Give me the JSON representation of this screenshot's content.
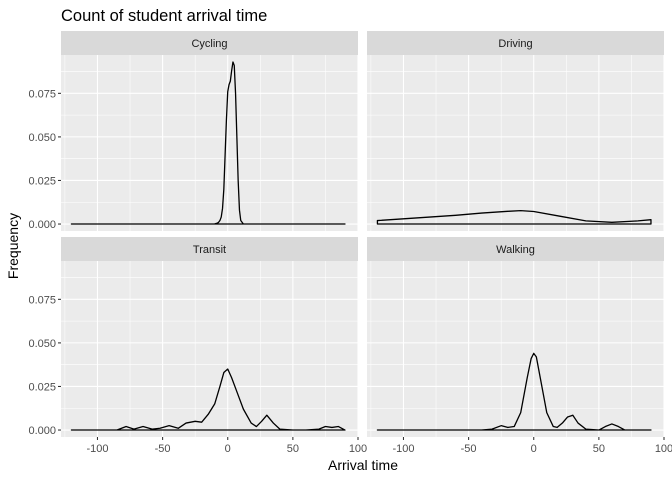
{
  "chart_data": {
    "type": "area",
    "title": "Count of student arrival time",
    "xlabel": "Arrival time",
    "ylabel": "Frequency",
    "xlim": [
      -128,
      100
    ],
    "ylim": [
      -0.004,
      0.097
    ],
    "x_ticks": [
      -100,
      -50,
      0,
      50,
      100
    ],
    "y_ticks": [
      0,
      0.025,
      0.05,
      0.075
    ],
    "x_tick_labels": [
      "-100",
      "-50",
      "0",
      "50",
      "100"
    ],
    "y_tick_labels": [
      "0.000",
      "0.025",
      "0.050",
      "0.075"
    ],
    "grid": true,
    "facets": [
      {
        "name": "Cycling",
        "x": [
          -120,
          -12,
          -10,
          -8,
          -7,
          -6,
          -5,
          -4,
          -3,
          -2,
          -1,
          0,
          1,
          2,
          3,
          4,
          5,
          6,
          7,
          8,
          9,
          10,
          12,
          90
        ],
        "y": [
          0,
          0,
          0.0001,
          0.0005,
          0.001,
          0.002,
          0.004,
          0.009,
          0.02,
          0.04,
          0.06,
          0.076,
          0.08,
          0.082,
          0.088,
          0.093,
          0.091,
          0.075,
          0.05,
          0.025,
          0.008,
          0.002,
          0,
          0
        ]
      },
      {
        "name": "Driving",
        "x": [
          -120,
          -100,
          -80,
          -60,
          -40,
          -20,
          -10,
          0,
          20,
          40,
          60,
          80,
          90
        ],
        "y": [
          0.002,
          0.003,
          0.004,
          0.005,
          0.0063,
          0.0073,
          0.0077,
          0.0072,
          0.0045,
          0.0018,
          0.001,
          0.0018,
          0.0025
        ]
      },
      {
        "name": "Transit",
        "x": [
          -120,
          -85,
          -78,
          -72,
          -65,
          -58,
          -52,
          -45,
          -38,
          -32,
          -25,
          -20,
          -15,
          -10,
          -6,
          -3,
          0,
          3,
          7,
          12,
          18,
          22,
          26,
          30,
          35,
          40,
          50,
          60,
          70,
          75,
          80,
          85,
          90
        ],
        "y": [
          0,
          0,
          0.002,
          0.0005,
          0.002,
          0.0005,
          0.001,
          0.0025,
          0.001,
          0.004,
          0.005,
          0.0045,
          0.009,
          0.015,
          0.025,
          0.033,
          0.035,
          0.03,
          0.022,
          0.012,
          0.004,
          0.002,
          0.005,
          0.0085,
          0.004,
          0.0005,
          0,
          0,
          0.0005,
          0.002,
          0.0015,
          0.002,
          0
        ]
      },
      {
        "name": "Walking",
        "x": [
          -120,
          -40,
          -32,
          -25,
          -20,
          -15,
          -10,
          -5,
          -2,
          0,
          2,
          5,
          10,
          15,
          18,
          22,
          26,
          30,
          34,
          40,
          50,
          55,
          60,
          65,
          70,
          80,
          90
        ],
        "y": [
          0,
          0,
          0.0005,
          0.0025,
          0.0015,
          0.002,
          0.01,
          0.03,
          0.041,
          0.044,
          0.042,
          0.03,
          0.01,
          0.002,
          0.0015,
          0.004,
          0.0075,
          0.0085,
          0.004,
          0.0005,
          0,
          0.002,
          0.0035,
          0.002,
          0,
          0,
          0
        ]
      }
    ]
  }
}
